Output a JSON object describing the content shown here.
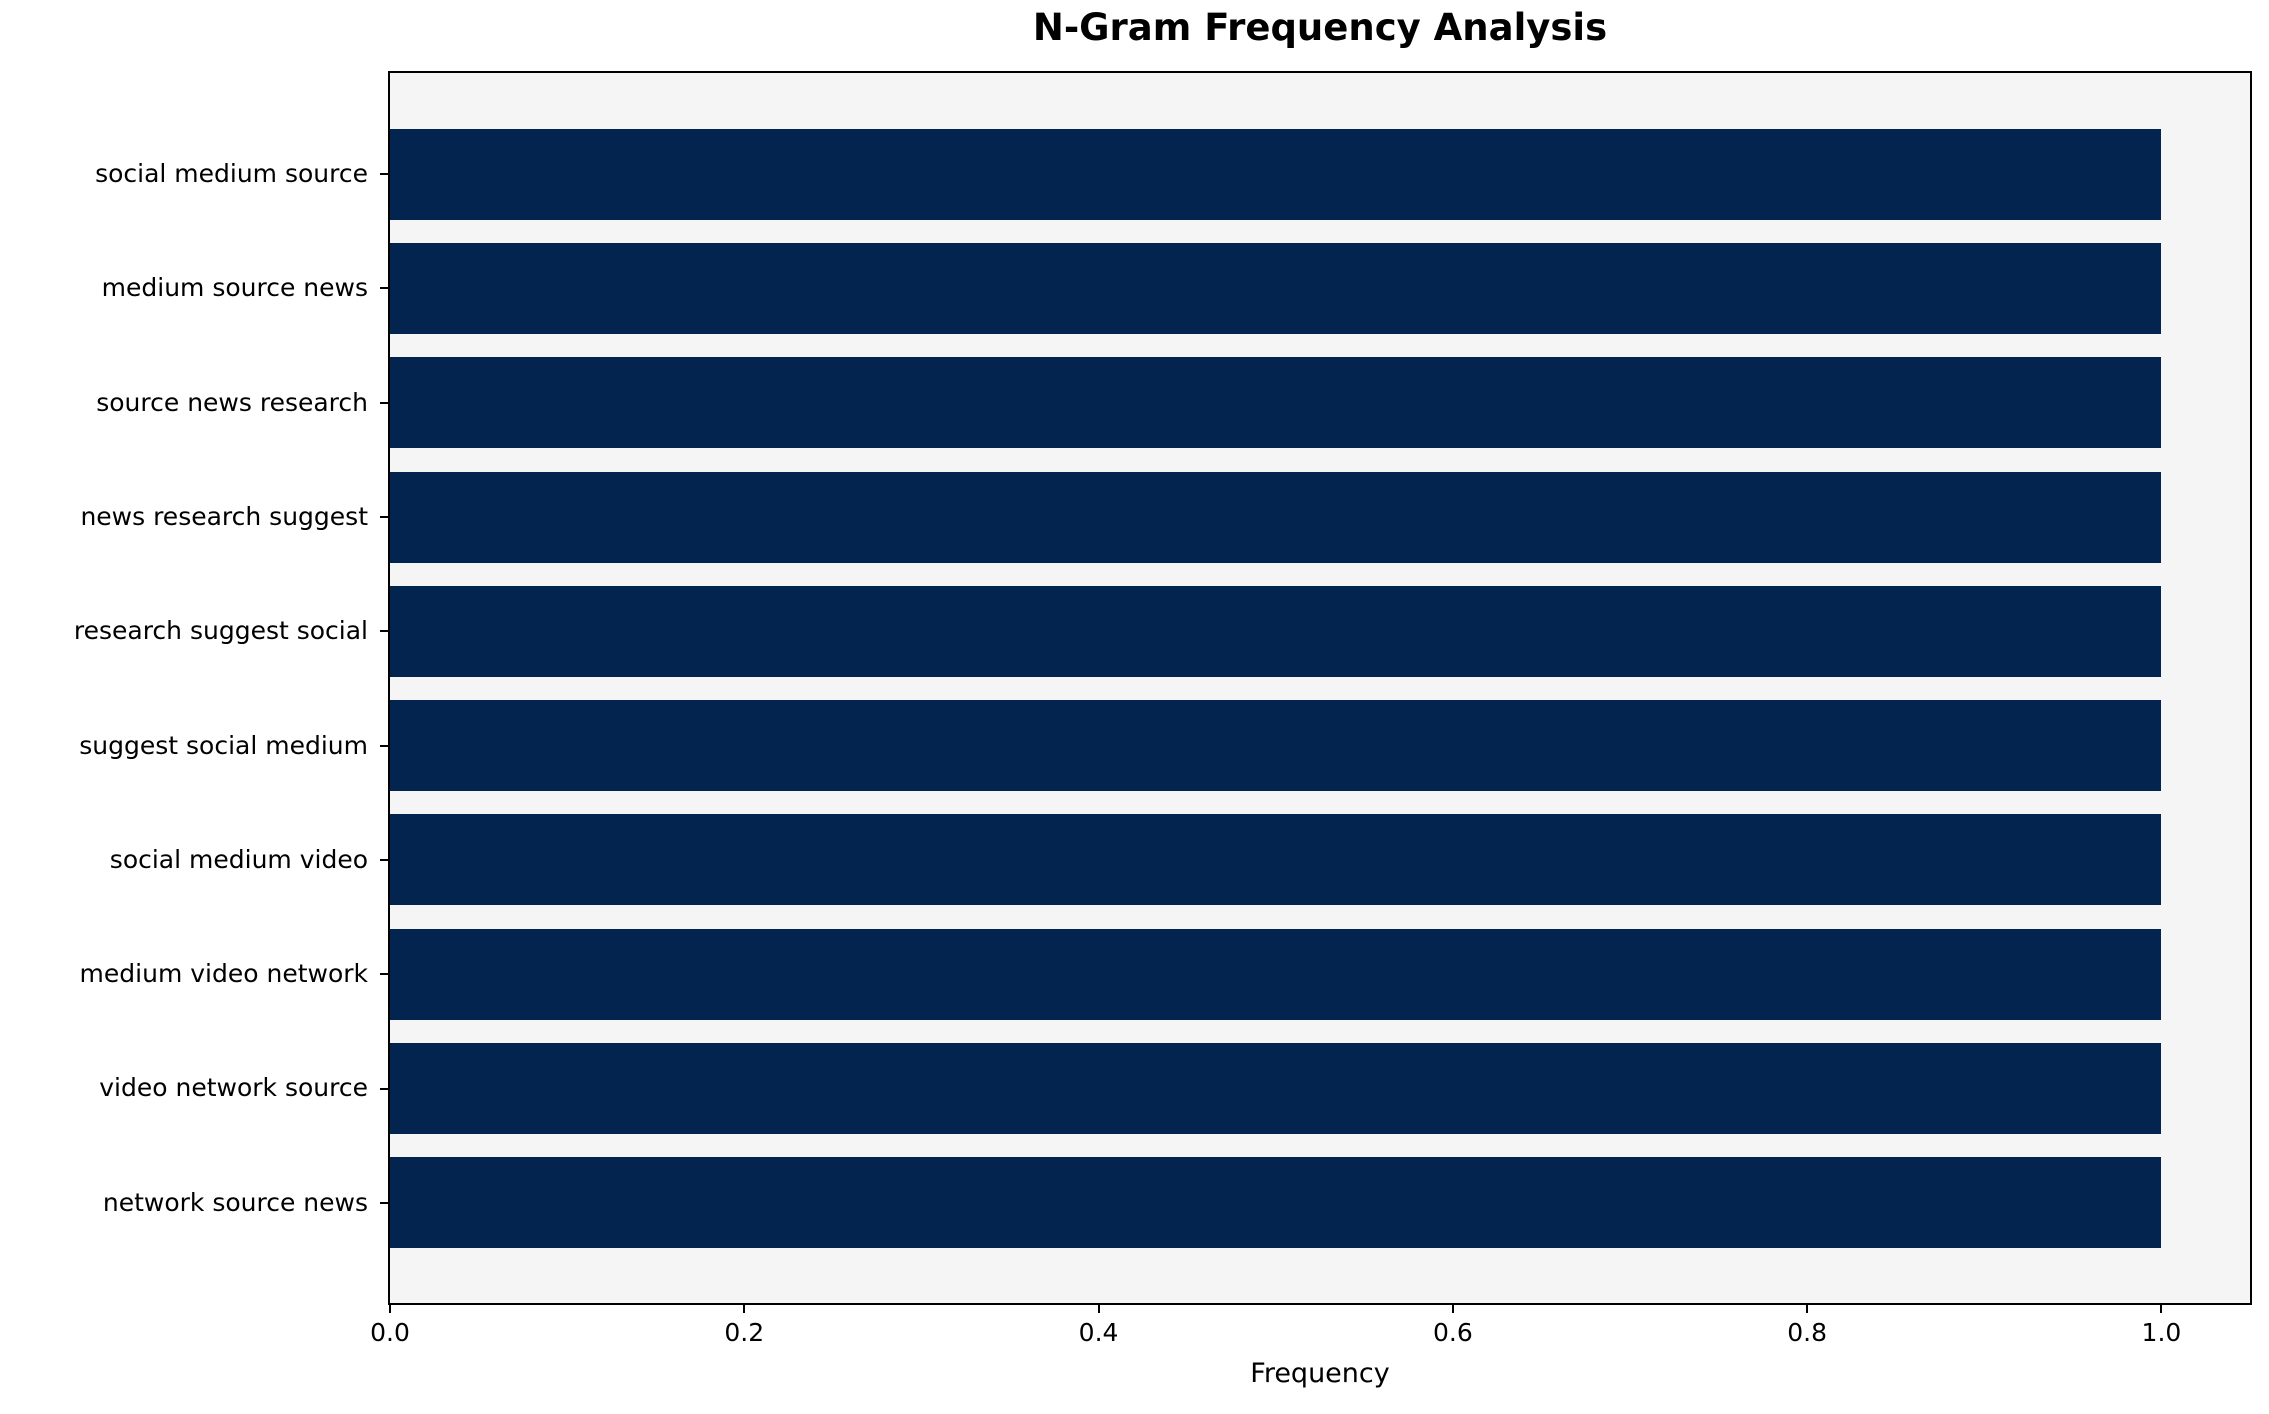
{
  "chart_data": {
    "type": "bar",
    "orientation": "horizontal",
    "title": "N-Gram Frequency Analysis",
    "xlabel": "Frequency",
    "ylabel": "",
    "categories": [
      "social medium source",
      "medium source news",
      "source news research",
      "news research suggest",
      "research suggest social",
      "suggest social medium",
      "social medium video",
      "medium video network",
      "video network source",
      "network source news"
    ],
    "values": [
      1.0,
      1.0,
      1.0,
      1.0,
      1.0,
      1.0,
      1.0,
      1.0,
      1.0,
      1.0
    ],
    "xlim": [
      0,
      1.05
    ],
    "xticks": [
      "0.0",
      "0.2",
      "0.4",
      "0.6",
      "0.8",
      "1.0"
    ],
    "xtick_values": [
      0.0,
      0.2,
      0.4,
      0.6,
      0.8,
      1.0
    ],
    "grid": false,
    "legend": null,
    "bar_color": "#02244e",
    "plot_background": "#f5f5f6",
    "figure_background": "#ffffff",
    "spine_color": "#000000"
  }
}
